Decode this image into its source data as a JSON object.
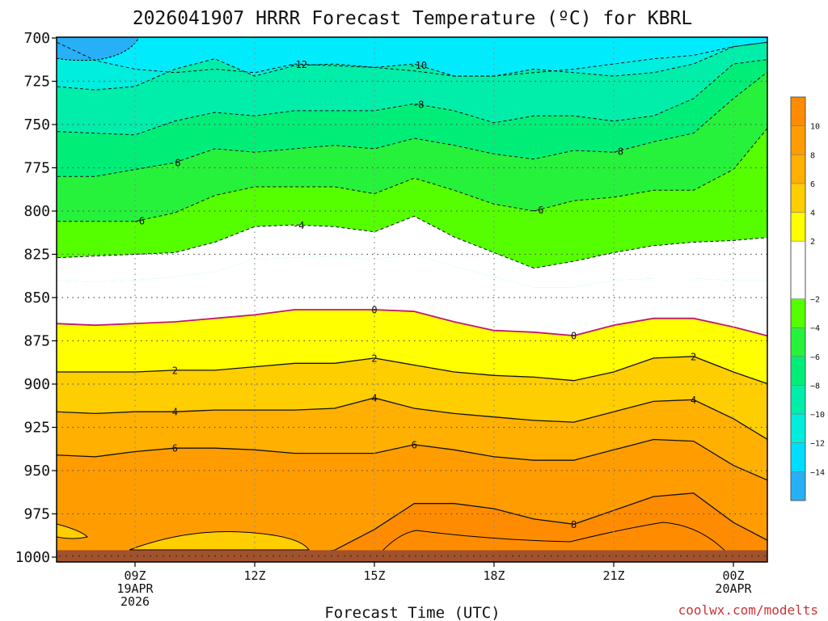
{
  "chart_data": {
    "type": "heatmap",
    "title": "2026041907 HRRR Forecast Temperature (ºC) for KBRL",
    "xlabel": "Forecast Time (UTC)",
    "ylabel": "",
    "credit": "coolwx.com/modelts",
    "x_hours": [
      7,
      8,
      9,
      10,
      11,
      12,
      13,
      14,
      15,
      16,
      17,
      18,
      19,
      20,
      21,
      22,
      23,
      24,
      25
    ],
    "xlim": [
      7,
      25
    ],
    "x_ticks": [
      {
        "hour": 9,
        "lines": [
          "09Z",
          "19APR",
          "2026"
        ]
      },
      {
        "hour": 12,
        "lines": [
          "12Z"
        ]
      },
      {
        "hour": 15,
        "lines": [
          "15Z"
        ]
      },
      {
        "hour": 18,
        "lines": [
          "18Z"
        ]
      },
      {
        "hour": 21,
        "lines": [
          "21Z"
        ]
      },
      {
        "hour": 24,
        "lines": [
          "00Z",
          "20APR"
        ]
      }
    ],
    "y_levels_hpa": [
      700,
      725,
      750,
      775,
      800,
      825,
      850,
      875,
      900,
      925,
      950,
      975,
      1000
    ],
    "ylim": [
      700,
      1000
    ],
    "surface_pressure_hpa": 996,
    "isotherms": [
      {
        "value": -12,
        "p": [
          702,
          713,
          718,
          720,
          718,
          720,
          715,
          716,
          717,
          719,
          722,
          722,
          720,
          718,
          715,
          712,
          710,
          705,
          702
        ]
      },
      {
        "value": -10,
        "p": [
          728,
          730,
          728,
          718,
          712,
          722,
          716,
          715,
          717,
          715,
          722,
          722,
          718,
          720,
          722,
          720,
          715,
          705,
          702
        ]
      },
      {
        "value": -8,
        "p": [
          754,
          755,
          756,
          748,
          743,
          745,
          742,
          742,
          742,
          738,
          742,
          749,
          745,
          745,
          748,
          745,
          735,
          715,
          712
        ]
      },
      {
        "value": -8,
        "p": [
          780,
          780,
          776,
          772,
          764,
          766,
          764,
          762,
          764,
          758,
          762,
          767,
          770,
          765,
          766,
          760,
          755,
          735,
          717
        ]
      },
      {
        "value": -6,
        "p": [
          806,
          806,
          806,
          801,
          791,
          786,
          786,
          786,
          790,
          781,
          788,
          796,
          800,
          794,
          792,
          788,
          788,
          776,
          748
        ]
      },
      {
        "value": -4,
        "p": [
          827,
          826,
          825,
          824,
          818,
          809,
          808,
          809,
          812,
          803,
          815,
          824,
          833,
          829,
          824,
          820,
          818,
          817,
          815
        ]
      },
      {
        "value": -2,
        "p": [
          840,
          841,
          840,
          838,
          835,
          828,
          827,
          826,
          828,
          825,
          832,
          838,
          844,
          844,
          840,
          839,
          839,
          840,
          840
        ]
      },
      {
        "value": 0,
        "p": [
          865,
          866,
          865,
          864,
          862,
          860,
          857,
          857,
          857,
          858,
          864,
          869,
          870,
          872,
          866,
          862,
          862,
          867,
          873
        ]
      },
      {
        "value": 2,
        "p": [
          893,
          893,
          893,
          892,
          892,
          890,
          888,
          888,
          885,
          889,
          893,
          895,
          896,
          898,
          893,
          885,
          884,
          893,
          901
        ]
      },
      {
        "value": 4,
        "p": [
          916,
          917,
          916,
          916,
          915,
          915,
          915,
          914,
          908,
          914,
          917,
          919,
          921,
          922,
          916,
          910,
          909,
          920,
          934
        ]
      },
      {
        "value": 6,
        "p": [
          941,
          942,
          939,
          937,
          937,
          938,
          940,
          940,
          940,
          935,
          938,
          942,
          944,
          944,
          938,
          932,
          933,
          947,
          957
        ]
      },
      {
        "value": 8,
        "p": [
          999,
          999,
          999,
          999,
          999,
          999,
          999,
          996,
          984,
          969,
          969,
          972,
          978,
          981,
          973,
          965,
          963,
          980,
          992
        ]
      }
    ],
    "contour_labels": [
      {
        "value": -12,
        "hour": 13.1
      },
      {
        "value": -10,
        "hour": 16.1
      },
      {
        "value": -8,
        "hour": 10.0
      },
      {
        "value": -8,
        "hour": 16.1
      },
      {
        "value": -8,
        "hour": 21.1
      },
      {
        "value": -6,
        "hour": 9.1
      },
      {
        "value": -6,
        "hour": 19.1
      },
      {
        "value": -4,
        "hour": 13.1
      },
      {
        "value": 0,
        "hour": 15.0
      },
      {
        "value": 0,
        "hour": 20.0
      },
      {
        "value": 2,
        "hour": 10.0
      },
      {
        "value": 2,
        "hour": 15.0
      },
      {
        "value": 2,
        "hour": 23.0
      },
      {
        "value": 4,
        "hour": 10.0
      },
      {
        "value": 4,
        "hour": 15.0
      },
      {
        "value": 4,
        "hour": 23.0
      },
      {
        "value": 6,
        "hour": 10.0
      },
      {
        "value": 6,
        "hour": 16.0
      },
      {
        "value": 8,
        "hour": 20.0
      }
    ],
    "upper_edge_colors": {
      "cold": "#27b0f5",
      "cyan": "#00ecfd"
    },
    "colorbar": {
      "labels": [
        "10",
        "8",
        "6",
        "4",
        "2",
        "−2",
        "−4",
        "−6",
        "−8",
        "−10",
        "−12",
        "−14"
      ],
      "bins": [
        {
          "from": 10,
          "to": 12,
          "color": "#ff8c00"
        },
        {
          "from": 8,
          "to": 10,
          "color": "#ff9d00"
        },
        {
          "from": 6,
          "to": 8,
          "color": "#ffb000"
        },
        {
          "from": 4,
          "to": 6,
          "color": "#ffce00"
        },
        {
          "from": 2,
          "to": 4,
          "color": "#ffff00"
        },
        {
          "from": -2,
          "to": 2,
          "color": "#ffffff"
        },
        {
          "from": -4,
          "to": -2,
          "color": "#55ff00"
        },
        {
          "from": -6,
          "to": -4,
          "color": "#26f23c"
        },
        {
          "from": -8,
          "to": -6,
          "color": "#00ee77"
        },
        {
          "from": -10,
          "to": -8,
          "color": "#00eeaa"
        },
        {
          "from": -12,
          "to": -10,
          "color": "#00eedd"
        },
        {
          "from": -14,
          "to": -12,
          "color": "#00ddff"
        },
        {
          "from": -16,
          "to": -14,
          "color": "#27b0f5"
        }
      ]
    },
    "grid": true,
    "ground_color": "#a0522d"
  }
}
